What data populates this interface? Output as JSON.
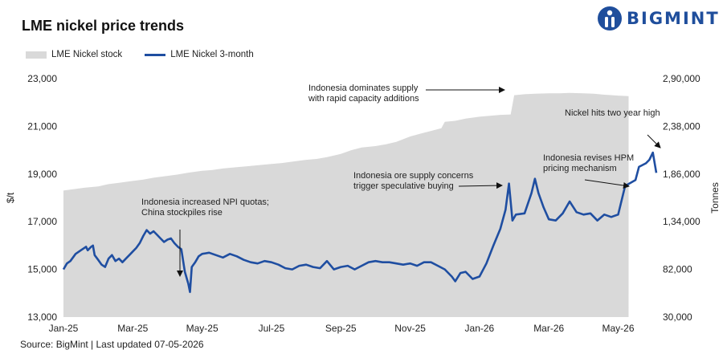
{
  "title": "LME nickel price trends",
  "brand": {
    "name": "BIGMINT",
    "logo_icon": "bigmint-person-icon",
    "brand_color": "#1f4e9c"
  },
  "source": "Source: BigMint | Last updated 07-05-2026",
  "colors": {
    "price_line": "#1f4ea1",
    "stock_area": "#d9d9d9"
  },
  "chart_data": {
    "type": "area-line-combo",
    "title": "LME nickel price trends",
    "legend": {
      "placement": "top-left",
      "entries": [
        "LME Nickel stock",
        "LME Nickel 3-month"
      ]
    },
    "grid": false,
    "x": {
      "tick_labels": [
        "Jan-25",
        "Mar-25",
        "May-25",
        "Jul-25",
        "Sep-25",
        "Nov-25",
        "Jan-26",
        "Mar-26",
        "May-26"
      ],
      "range_months": [
        0,
        16.4
      ]
    },
    "y_left": {
      "label": "$/t",
      "ticks": [
        "13,000",
        "15,000",
        "17,000",
        "19,000",
        "21,000",
        "23,000"
      ],
      "range": [
        13000,
        23000
      ]
    },
    "y_right": {
      "label": "Tonnes",
      "ticks": [
        "30,000",
        "82,000",
        "1,34,000",
        "1,86,000",
        "2,38,000",
        "2,90,000"
      ],
      "range": [
        30000,
        290000
      ]
    },
    "series": [
      {
        "name": "LME Nickel stock",
        "type": "area",
        "axis": "right",
        "points": [
          [
            0,
            168000
          ],
          [
            0.3,
            169500
          ],
          [
            0.6,
            171000
          ],
          [
            1.0,
            172500
          ],
          [
            1.3,
            175000
          ],
          [
            1.6,
            176500
          ],
          [
            2.0,
            178500
          ],
          [
            2.3,
            180000
          ],
          [
            2.6,
            182000
          ],
          [
            3.0,
            184000
          ],
          [
            3.3,
            185500
          ],
          [
            3.6,
            187500
          ],
          [
            4.0,
            189500
          ],
          [
            4.3,
            190500
          ],
          [
            4.6,
            192000
          ],
          [
            5.0,
            193500
          ],
          [
            5.3,
            194500
          ],
          [
            5.6,
            195500
          ],
          [
            6.0,
            197000
          ],
          [
            6.3,
            198000
          ],
          [
            6.6,
            199500
          ],
          [
            7.0,
            201500
          ],
          [
            7.3,
            202500
          ],
          [
            7.6,
            204500
          ],
          [
            8.0,
            208000
          ],
          [
            8.3,
            212000
          ],
          [
            8.6,
            215000
          ],
          [
            9.0,
            216500
          ],
          [
            9.3,
            218500
          ],
          [
            9.6,
            221000
          ],
          [
            10.0,
            227000
          ],
          [
            10.3,
            230000
          ],
          [
            10.6,
            233000
          ],
          [
            10.9,
            236000
          ],
          [
            11.0,
            243000
          ],
          [
            11.3,
            244000
          ],
          [
            11.6,
            246500
          ],
          [
            12.0,
            248500
          ],
          [
            12.3,
            249500
          ],
          [
            12.6,
            250500
          ],
          [
            12.9,
            251000
          ],
          [
            13.0,
            272000
          ],
          [
            13.3,
            273000
          ],
          [
            13.6,
            273500
          ],
          [
            14.0,
            274000
          ],
          [
            14.3,
            274000
          ],
          [
            14.6,
            274500
          ],
          [
            15.0,
            274000
          ],
          [
            15.3,
            273500
          ],
          [
            15.6,
            272500
          ],
          [
            16.0,
            271500
          ],
          [
            16.3,
            271000
          ]
        ]
      },
      {
        "name": "LME Nickel 3-month",
        "type": "line",
        "axis": "left",
        "points": [
          [
            0,
            15000
          ],
          [
            0.1,
            15250
          ],
          [
            0.2,
            15350
          ],
          [
            0.35,
            15650
          ],
          [
            0.5,
            15800
          ],
          [
            0.65,
            15950
          ],
          [
            0.7,
            15800
          ],
          [
            0.8,
            15950
          ],
          [
            0.85,
            16000
          ],
          [
            0.9,
            15600
          ],
          [
            1.0,
            15400
          ],
          [
            1.1,
            15200
          ],
          [
            1.2,
            15100
          ],
          [
            1.3,
            15450
          ],
          [
            1.4,
            15600
          ],
          [
            1.5,
            15350
          ],
          [
            1.6,
            15450
          ],
          [
            1.7,
            15300
          ],
          [
            1.8,
            15450
          ],
          [
            1.9,
            15600
          ],
          [
            2.0,
            15750
          ],
          [
            2.1,
            15900
          ],
          [
            2.2,
            16100
          ],
          [
            2.3,
            16400
          ],
          [
            2.4,
            16650
          ],
          [
            2.5,
            16500
          ],
          [
            2.6,
            16600
          ],
          [
            2.7,
            16450
          ],
          [
            2.8,
            16300
          ],
          [
            2.9,
            16150
          ],
          [
            3.0,
            16250
          ],
          [
            3.1,
            16300
          ],
          [
            3.2,
            16100
          ],
          [
            3.3,
            15950
          ],
          [
            3.4,
            15850
          ],
          [
            3.5,
            14900
          ],
          [
            3.6,
            14400
          ],
          [
            3.65,
            14050
          ],
          [
            3.7,
            15100
          ],
          [
            3.8,
            15300
          ],
          [
            3.9,
            15550
          ],
          [
            4.0,
            15650
          ],
          [
            4.2,
            15700
          ],
          [
            4.4,
            15600
          ],
          [
            4.6,
            15500
          ],
          [
            4.8,
            15650
          ],
          [
            5.0,
            15550
          ],
          [
            5.2,
            15400
          ],
          [
            5.4,
            15300
          ],
          [
            5.6,
            15250
          ],
          [
            5.8,
            15350
          ],
          [
            6.0,
            15300
          ],
          [
            6.2,
            15200
          ],
          [
            6.4,
            15050
          ],
          [
            6.6,
            15000
          ],
          [
            6.8,
            15150
          ],
          [
            7.0,
            15200
          ],
          [
            7.2,
            15100
          ],
          [
            7.4,
            15050
          ],
          [
            7.6,
            15350
          ],
          [
            7.8,
            15000
          ],
          [
            8.0,
            15100
          ],
          [
            8.2,
            15150
          ],
          [
            8.4,
            15000
          ],
          [
            8.6,
            15150
          ],
          [
            8.8,
            15300
          ],
          [
            9.0,
            15350
          ],
          [
            9.2,
            15300
          ],
          [
            9.4,
            15300
          ],
          [
            9.6,
            15250
          ],
          [
            9.8,
            15200
          ],
          [
            10.0,
            15250
          ],
          [
            10.2,
            15150
          ],
          [
            10.4,
            15300
          ],
          [
            10.6,
            15300
          ],
          [
            10.8,
            15150
          ],
          [
            11.0,
            15000
          ],
          [
            11.2,
            14700
          ],
          [
            11.3,
            14500
          ],
          [
            11.45,
            14850
          ],
          [
            11.6,
            14900
          ],
          [
            11.8,
            14600
          ],
          [
            12.0,
            14700
          ],
          [
            12.2,
            15250
          ],
          [
            12.4,
            16000
          ],
          [
            12.6,
            16700
          ],
          [
            12.75,
            17500
          ],
          [
            12.85,
            18600
          ],
          [
            12.95,
            17050
          ],
          [
            13.05,
            17300
          ],
          [
            13.3,
            17350
          ],
          [
            13.5,
            18200
          ],
          [
            13.6,
            18800
          ],
          [
            13.7,
            18200
          ],
          [
            13.85,
            17600
          ],
          [
            14.0,
            17100
          ],
          [
            14.2,
            17050
          ],
          [
            14.4,
            17350
          ],
          [
            14.6,
            17850
          ],
          [
            14.8,
            17400
          ],
          [
            15.0,
            17300
          ],
          [
            15.2,
            17350
          ],
          [
            15.4,
            17050
          ],
          [
            15.6,
            17300
          ],
          [
            15.8,
            17200
          ],
          [
            16.0,
            17300
          ],
          [
            16.2,
            18500
          ],
          [
            16.5,
            18750
          ],
          [
            16.6,
            19300
          ],
          [
            16.8,
            19450
          ],
          [
            16.9,
            19600
          ],
          [
            17.0,
            19900
          ],
          [
            17.1,
            19050
          ]
        ]
      }
    ],
    "annotations": [
      {
        "text": [
          "Indonesia increased NPI quotas;",
          "China stockpiles rise"
        ],
        "x": 3.6,
        "y": 14200
      },
      {
        "text": [
          "Indonesia dominates supply",
          "with rapid capacity additions"
        ],
        "x": 12.85,
        "y": 22650
      },
      {
        "text": [
          "Indonesia ore supply concerns",
          "trigger speculative buying"
        ],
        "x": 12.85,
        "y": 18650
      },
      {
        "text": [
          "Nickel hits two year high"
        ],
        "x": 17.0,
        "y": 20000
      },
      {
        "text": [
          "Indonesia revises HPM",
          "pricing mechanism"
        ],
        "x": 16.0,
        "y": 18600
      }
    ]
  }
}
